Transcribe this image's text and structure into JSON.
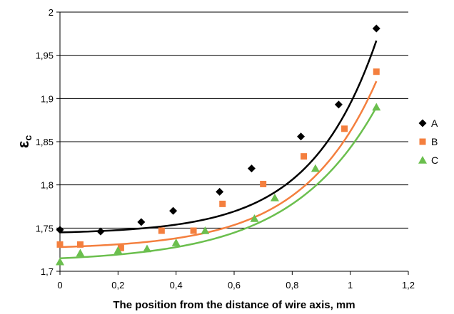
{
  "chart_data": {
    "type": "scatter",
    "title": "",
    "xlabel": "The position from the distance of wire axis, mm",
    "ylabel_main": "ε",
    "ylabel_sub": "c",
    "xlim": [
      0,
      1.2
    ],
    "ylim": [
      1.7,
      2.0
    ],
    "x_ticks": [
      0,
      0.2,
      0.4,
      0.6,
      0.8,
      1.0,
      1.2
    ],
    "x_tick_labels": [
      "0",
      "0,2",
      "0,4",
      "0,6",
      "0,8",
      "1",
      "1,2"
    ],
    "y_ticks": [
      1.7,
      1.75,
      1.8,
      1.85,
      1.9,
      1.95,
      2.0
    ],
    "y_tick_labels": [
      "1,7",
      "1,75",
      "1,8",
      "1,85",
      "1,9",
      "1,95",
      "2"
    ],
    "grid": "horizontal",
    "legend_position": "right",
    "series": [
      {
        "name": "A",
        "marker": "diamond",
        "color": "#000000",
        "x": [
          0,
          0.14,
          0.28,
          0.39,
          0.55,
          0.66,
          0.83,
          0.96,
          1.09
        ],
        "y": [
          1.748,
          1.746,
          1.757,
          1.77,
          1.792,
          1.819,
          1.856,
          1.893,
          1.981
        ],
        "trend": {
          "type": "exponential",
          "x0": 0,
          "x1": 1.09,
          "a": 1.745,
          "b": 0.222,
          "k": 4.38
        }
      },
      {
        "name": "B",
        "marker": "square",
        "color": "#f47f3e",
        "x": [
          0,
          0.07,
          0.21,
          0.35,
          0.46,
          0.56,
          0.7,
          0.84,
          0.98,
          1.09
        ],
        "y": [
          1.731,
          1.731,
          1.727,
          1.747,
          1.747,
          1.778,
          1.801,
          1.833,
          1.865,
          1.931
        ],
        "trend": {
          "type": "exponential",
          "x0": 0,
          "x1": 1.09,
          "a": 1.728,
          "b": 0.192,
          "k": 3.94
        }
      },
      {
        "name": "C",
        "marker": "triangle",
        "color": "#6bbf4e",
        "x": [
          0,
          0.07,
          0.2,
          0.3,
          0.4,
          0.5,
          0.67,
          0.74,
          0.88,
          1.09
        ],
        "y": [
          1.711,
          1.721,
          1.724,
          1.726,
          1.733,
          1.747,
          1.761,
          1.785,
          1.819,
          1.89
        ],
        "trend": {
          "type": "exponential",
          "x0": 0,
          "x1": 1.09,
          "a": 1.715,
          "b": 0.175,
          "k": 3.38
        }
      }
    ]
  }
}
